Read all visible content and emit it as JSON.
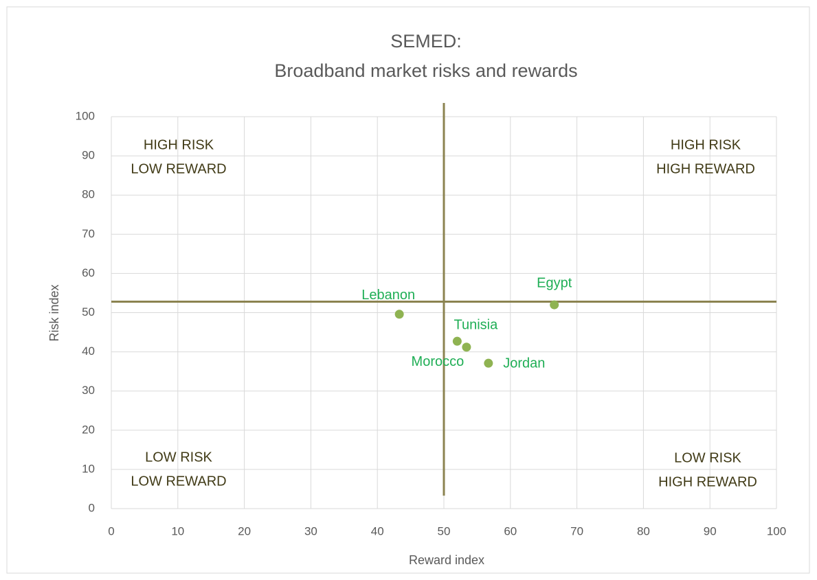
{
  "chart_data": {
    "type": "scatter",
    "title": "SEMED:",
    "subtitle": "Broadband market risks and rewards",
    "x_label": "Reward index",
    "y_label": "Risk index",
    "point_labels": [
      "Lebanon",
      "Egypt",
      "Tunisia",
      "Morocco",
      "Jordan"
    ],
    "x": [
      43.3,
      66.6,
      52.0,
      53.4,
      56.7
    ],
    "y": [
      49.6,
      52.0,
      42.7,
      41.2,
      37.1
    ],
    "color": "#8fb352",
    "quadrant_lines": [
      {
        "x": [
          50,
          50
        ],
        "y": [
          3.3,
          103.5
        ]
      },
      {
        "x": [
          0,
          100
        ],
        "y": [
          52.8,
          52.8
        ]
      }
    ],
    "quadrant_line_color": "#8b8350",
    "annotations": [
      [
        "HIGH RISK",
        "LOW REWARD"
      ],
      [
        "HIGH RISK",
        "HIGH REWARD"
      ],
      [
        "LOW RISK",
        "LOW REWARD"
      ],
      [
        "LOW RISK",
        "HIGH REWARD"
      ]
    ],
    "xlim": [
      0,
      100
    ],
    "ylim": [
      0,
      100
    ],
    "xticks": [
      0,
      10,
      20,
      30,
      40,
      50,
      60,
      70,
      80,
      90,
      100
    ],
    "yticks": [
      0,
      10,
      20,
      30,
      40,
      50,
      60,
      70,
      80,
      90,
      100
    ],
    "grid": true
  }
}
